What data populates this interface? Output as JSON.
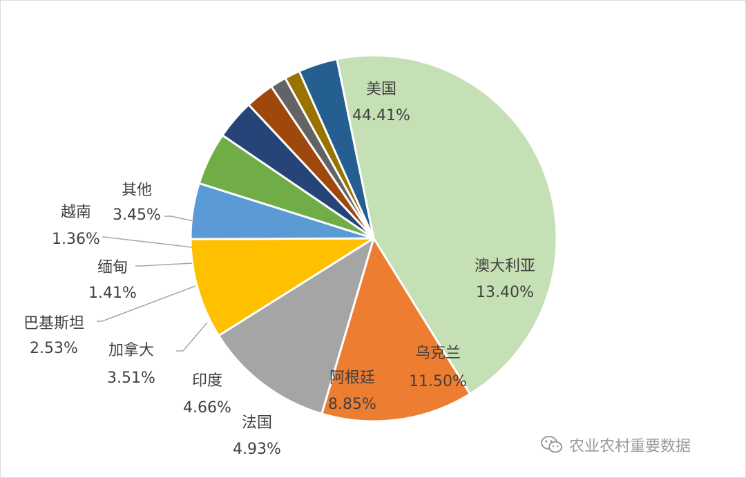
{
  "chart_data": {
    "type": "pie",
    "title": "",
    "slices": [
      {
        "label": "美国",
        "value": 44.41,
        "pct": "44.41%",
        "color": "#c5e0b4"
      },
      {
        "label": "澳大利亚",
        "value": 13.4,
        "pct": "13.40%",
        "color": "#ed7d31"
      },
      {
        "label": "乌克兰",
        "value": 11.5,
        "pct": "11.50%",
        "color": "#a5a5a5"
      },
      {
        "label": "阿根廷",
        "value": 8.85,
        "pct": "8.85%",
        "color": "#ffc000"
      },
      {
        "label": "法国",
        "value": 4.93,
        "pct": "4.93%",
        "color": "#5b9bd5"
      },
      {
        "label": "印度",
        "value": 4.66,
        "pct": "4.66%",
        "color": "#70ad47"
      },
      {
        "label": "加拿大",
        "value": 3.51,
        "pct": "3.51%",
        "color": "#264478"
      },
      {
        "label": "巴基斯坦",
        "value": 2.53,
        "pct": "2.53%",
        "color": "#9e480e"
      },
      {
        "label": "缅甸",
        "value": 1.41,
        "pct": "1.41%",
        "color": "#636363"
      },
      {
        "label": "越南",
        "value": 1.36,
        "pct": "1.36%",
        "color": "#997300"
      },
      {
        "label": "其他",
        "value": 3.45,
        "pct": "3.45%",
        "color": "#255e91"
      }
    ]
  },
  "watermark": {
    "text": "农业农村重要数据",
    "icon": "wechat-icon"
  }
}
